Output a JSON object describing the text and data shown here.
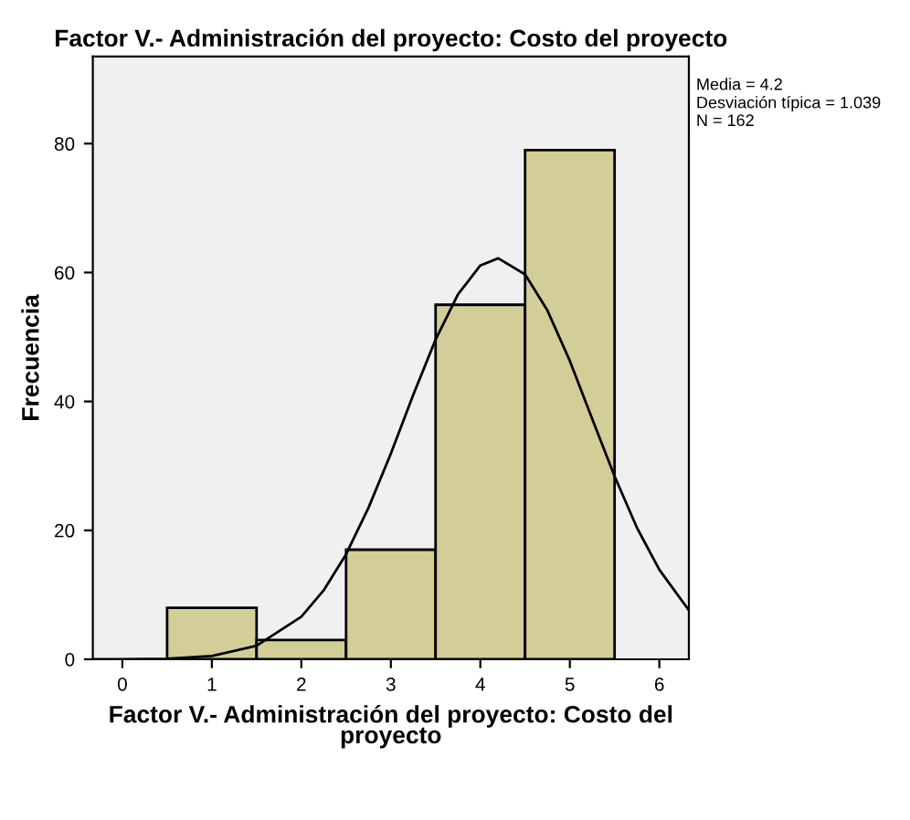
{
  "chart_data": {
    "type": "histogram",
    "title": "Factor V.- Administración del proyecto: Costo del proyecto",
    "xlabel": "Factor V.- Administración del proyecto: Costo del\nproyecto",
    "ylabel": "Frecuencia",
    "bins": [
      0.5,
      1.5,
      2.5,
      3.5,
      4.5,
      5.5
    ],
    "values": [
      8,
      3,
      17,
      55,
      79
    ],
    "color": "#d3ce97",
    "series": [
      {
        "type": "line",
        "color": "#000000",
        "x": [
          -0.33,
          0,
          0.5,
          1,
          1.5,
          2,
          2.25,
          2.5,
          2.75,
          3,
          3.25,
          3.5,
          3.75,
          4,
          4.2,
          4.5,
          4.75,
          5,
          5.25,
          5.5,
          5.75,
          6,
          6.33
        ],
        "values": [
          0,
          0,
          0.1,
          0.5,
          2.1,
          6.6,
          10.7,
          16.3,
          23.5,
          31.9,
          41.0,
          49.6,
          56.6,
          61.1,
          62.2,
          59.7,
          54.1,
          46.3,
          37.3,
          28.4,
          20.4,
          13.9,
          7.6
        ]
      }
    ],
    "xlim": [
      -0.33,
      6.33
    ],
    "ylim": [
      0,
      93.5
    ],
    "xticks": [
      0,
      1,
      2,
      3,
      4,
      5,
      6
    ],
    "yticks": [
      0,
      20,
      40,
      60,
      80
    ],
    "grid": false,
    "legend": false,
    "annotations": [
      "Media = 4.2",
      "Desviación típica = 1.039",
      "N = 162"
    ]
  }
}
